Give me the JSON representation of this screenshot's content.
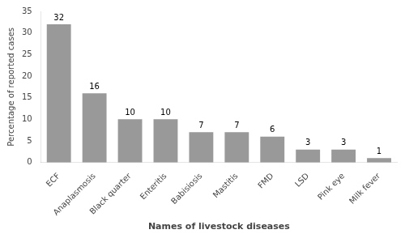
{
  "chart_data": {
    "type": "bar",
    "categories": [
      "ECF",
      "Anaplasmosis",
      "Black quarter",
      "Enteritis",
      "Babisiosis",
      "Mastitis",
      "FMD",
      "LSD",
      "Pink eye",
      "Milk fever"
    ],
    "values": [
      32,
      16,
      10,
      10,
      7,
      7,
      6,
      3,
      3,
      1
    ],
    "color": "#999999",
    "xlabel": "Names of livestock diseases",
    "ylabel": "Percentage of reported cases",
    "ylim": [
      0,
      35
    ],
    "yticks": [
      0,
      5,
      10,
      15,
      20,
      25,
      30,
      35
    ],
    "grid": false,
    "data_labels": true
  }
}
